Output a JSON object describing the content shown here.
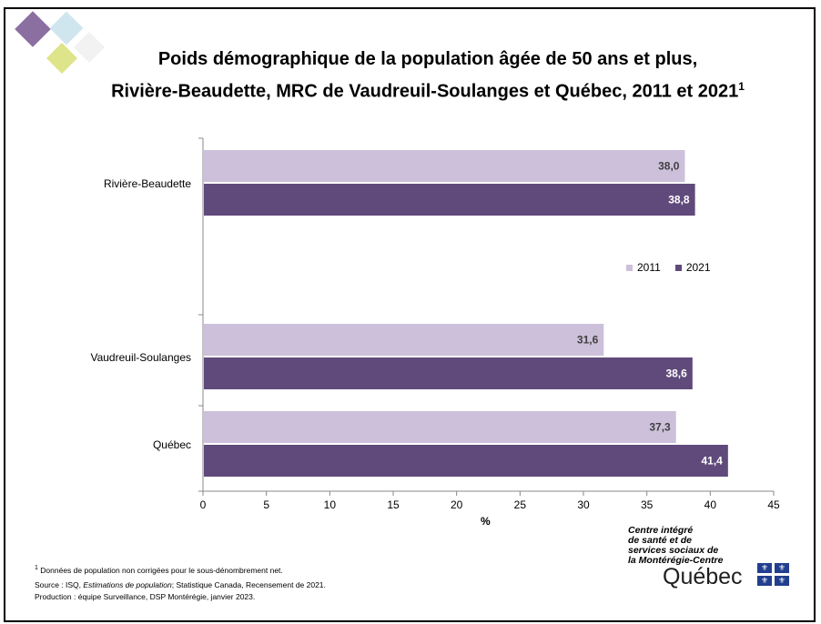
{
  "title_line1": "Poids démographique de la population âgée de 50 ans et plus,",
  "title_line2": "Rivière-Beaudette, MRC de Vaudreuil-Soulanges et Québec, 2011 et 2021",
  "title_sup": "1",
  "chart_data": {
    "type": "bar",
    "orientation": "horizontal",
    "categories": [
      "Rivière-Beaudette",
      "Vaudreuil-Soulanges",
      "Québec"
    ],
    "series": [
      {
        "name": "2011",
        "color": "#ccc0da",
        "values": [
          38.0,
          31.6,
          37.3
        ],
        "labels": [
          "38,0",
          "31,6",
          "37,3"
        ]
      },
      {
        "name": "2021",
        "color": "#604a7b",
        "values": [
          38.8,
          38.6,
          41.4
        ],
        "labels": [
          "38,8",
          "38,6",
          "41,4"
        ]
      }
    ],
    "xlabel": "%",
    "xlim": [
      0,
      45
    ],
    "xticks": [
      0,
      5,
      10,
      15,
      20,
      25,
      30,
      35,
      40,
      45
    ],
    "legend_position": "right",
    "grid": false
  },
  "notes": {
    "footnote_sup": "1",
    "footnote": " Données de population non corrigées pour le sous-dénombrement net.",
    "source_prefix": "Source : ISQ, ",
    "source_italic": "Estimations de population",
    "source_suffix": "; Statistique Canada, Recensement de 2021.",
    "production": "Production : équipe Surveillance, DSP Montérégie, janvier 2023."
  },
  "logo": {
    "line1": "Centre intégré",
    "line2": "de santé et de",
    "line3": "services sociaux de",
    "line4": "la Montérégie-Centre",
    "brand": "Québec"
  },
  "colors": {
    "deco_purple": "#8a6fa0",
    "deco_blue": "#cfe6ee",
    "deco_yellow": "#dde48a"
  }
}
